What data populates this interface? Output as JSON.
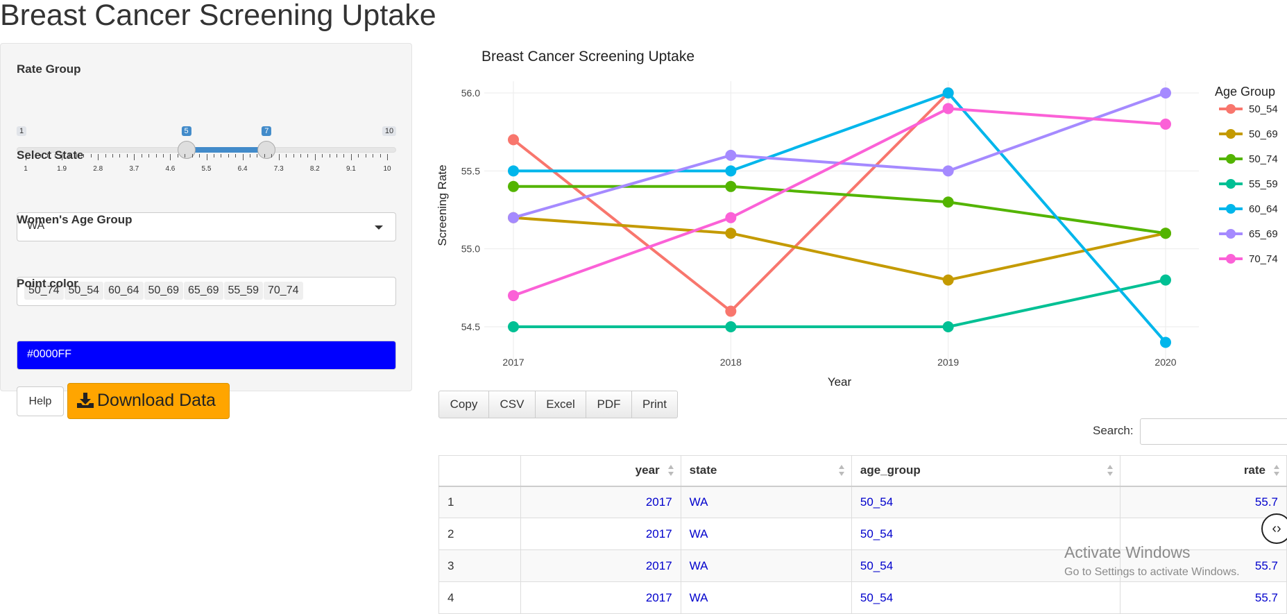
{
  "page": {
    "title": "Breast Cancer Screening Uptake"
  },
  "sidebar": {
    "rate_group": {
      "label": "Rate Group",
      "min": 1,
      "max": 10,
      "from": 5,
      "to": 7,
      "min_label": "1",
      "max_label": "10",
      "from_label": "5",
      "to_label": "7",
      "ticks": [
        "1",
        "1.9",
        "2.8",
        "3.7",
        "4.6",
        "5.5",
        "6.4",
        "7.3",
        "8.2",
        "9.1",
        "10"
      ]
    },
    "state": {
      "label": "Select State",
      "value": "WA"
    },
    "age_group": {
      "label": "Women's Age Group",
      "selected": [
        "50_74",
        "50_54",
        "60_64",
        "50_69",
        "65_69",
        "55_59",
        "70_74"
      ]
    },
    "point_color": {
      "label": "Point color",
      "value": "#0000FF"
    },
    "help_label": "Help",
    "download_label": "Download Data",
    "download_color": "#FFA500",
    "download_icon": "download-icon"
  },
  "chart_data": {
    "type": "line",
    "title": "Breast Cancer Screening Uptake",
    "xlabel": "Year",
    "ylabel": "Screening Rate",
    "legend_title": "Age Group",
    "legend_position": "right",
    "x": [
      2017,
      2018,
      2019,
      2020
    ],
    "x_tick_labels": [
      "2017",
      "2018",
      "2019",
      "2020"
    ],
    "ylim": [
      54.4,
      56.05
    ],
    "yticks": [
      "54.5",
      "55.0",
      "55.5",
      "56.0"
    ],
    "grid": true,
    "series": [
      {
        "name": "50_54",
        "color": "#F8766D",
        "values": [
          55.7,
          54.6,
          56.0,
          null
        ]
      },
      {
        "name": "50_69",
        "color": "#C49A00",
        "values": [
          55.2,
          55.1,
          54.8,
          55.1
        ]
      },
      {
        "name": "50_74",
        "color": "#53B400",
        "values": [
          55.4,
          55.4,
          55.3,
          55.1
        ]
      },
      {
        "name": "55_59",
        "color": "#00C094",
        "values": [
          54.5,
          54.5,
          54.5,
          54.8
        ]
      },
      {
        "name": "60_64",
        "color": "#00B6EB",
        "values": [
          55.5,
          55.5,
          56.0,
          54.4
        ]
      },
      {
        "name": "65_69",
        "color": "#A58AFF",
        "values": [
          55.2,
          55.6,
          55.5,
          56.0
        ]
      },
      {
        "name": "70_74",
        "color": "#FB61D7",
        "values": [
          54.7,
          55.2,
          55.9,
          55.8
        ]
      }
    ]
  },
  "table": {
    "buttons": [
      "Copy",
      "CSV",
      "Excel",
      "PDF",
      "Print"
    ],
    "search_label": "Search:",
    "columns": [
      "",
      "year",
      "state",
      "age_group",
      "rate"
    ],
    "rows": [
      [
        "1",
        "2017",
        "WA",
        "50_54",
        "55.7"
      ],
      [
        "2",
        "2017",
        "WA",
        "50_54",
        ""
      ],
      [
        "3",
        "2017",
        "WA",
        "50_54",
        "55.7"
      ],
      [
        "4",
        "2017",
        "WA",
        "50_54",
        "55.7"
      ]
    ]
  },
  "watermark": {
    "line1": "Activate Windows",
    "line2": "Go to Settings to activate Windows."
  }
}
